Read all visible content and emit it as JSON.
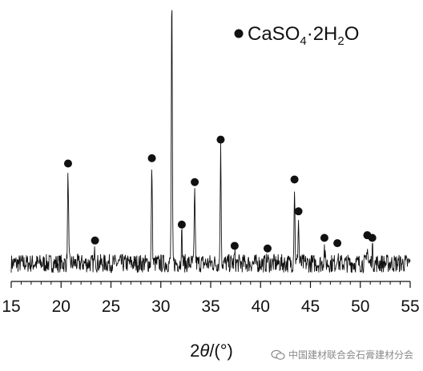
{
  "chart_data": {
    "type": "line",
    "title": "",
    "xlabel": "2θ/(°)",
    "ylabel": "",
    "xlim": [
      15,
      55
    ],
    "xticks": [
      15,
      20,
      25,
      30,
      35,
      40,
      45,
      50,
      55
    ],
    "yaxis_visible": false,
    "grid": false,
    "legend": {
      "position": "top-right",
      "marker": "filled-circle",
      "text": "CaSO4·2H2O"
    },
    "baseline": 0.05,
    "noise": 0.035,
    "peaks": [
      {
        "x": 20.7,
        "y": 0.34
      },
      {
        "x": 23.4,
        "y": 0.05
      },
      {
        "x": 29.1,
        "y": 0.36
      },
      {
        "x": 31.1,
        "y": 1.0
      },
      {
        "x": 32.1,
        "y": 0.11
      },
      {
        "x": 33.4,
        "y": 0.27
      },
      {
        "x": 36.0,
        "y": 0.43
      },
      {
        "x": 37.4,
        "y": 0.03
      },
      {
        "x": 40.7,
        "y": 0.02
      },
      {
        "x": 43.4,
        "y": 0.28
      },
      {
        "x": 43.8,
        "y": 0.16
      },
      {
        "x": 46.4,
        "y": 0.06
      },
      {
        "x": 47.7,
        "y": 0.04
      },
      {
        "x": 50.7,
        "y": 0.07
      },
      {
        "x": 51.2,
        "y": 0.06
      }
    ]
  },
  "legend_formula": {
    "base": "CaSO",
    "sub1": "4",
    "mid": "·2H",
    "sub2": "2",
    "end": "O"
  },
  "watermark": {
    "text": "中国建材联合会石膏建材分会",
    "icon": "wechat-icon"
  }
}
